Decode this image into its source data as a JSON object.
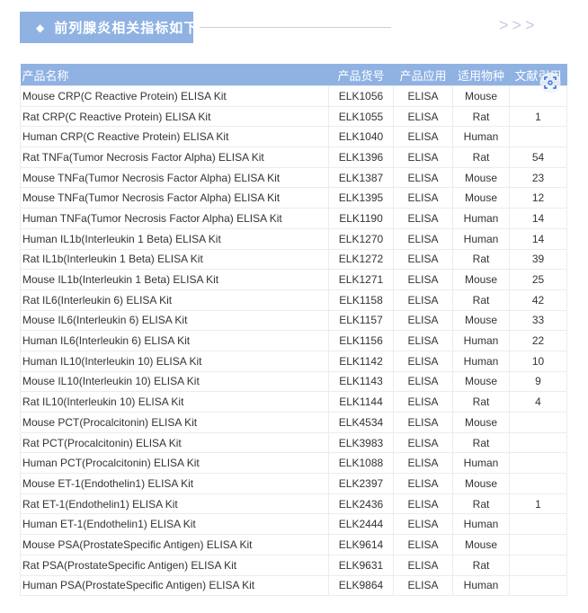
{
  "banner": {
    "icon": "diamond-icon",
    "title": "前列腺炎相关指标如下："
  },
  "decor": {
    "arrows": ">>>"
  },
  "table": {
    "headers": [
      "产品名称",
      "产品货号",
      "产品应用",
      "适用物种",
      "文献引用"
    ],
    "rows": [
      [
        "Mouse CRP(C Reactive Protein) ELISA Kit",
        "ELK1056",
        "ELISA",
        "Mouse",
        ""
      ],
      [
        "Rat CRP(C Reactive Protein) ELISA Kit",
        "ELK1055",
        "ELISA",
        "Rat",
        "1"
      ],
      [
        "Human CRP(C Reactive Protein) ELISA Kit",
        "ELK1040",
        "ELISA",
        "Human",
        ""
      ],
      [
        "Rat TNFa(Tumor Necrosis Factor Alpha) ELISA Kit",
        "ELK1396",
        "ELISA",
        "Rat",
        "54"
      ],
      [
        "Mouse TNFa(Tumor Necrosis Factor Alpha) ELISA Kit",
        "ELK1387",
        "ELISA",
        "Mouse",
        "23"
      ],
      [
        "Mouse TNFa(Tumor Necrosis Factor Alpha) ELISA Kit",
        "ELK1395",
        "ELISA",
        "Mouse",
        "12"
      ],
      [
        "Human TNFa(Tumor Necrosis Factor Alpha) ELISA Kit",
        "ELK1190",
        "ELISA",
        "Human",
        "14"
      ],
      [
        "Human IL1b(Interleukin 1 Beta) ELISA Kit",
        "ELK1270",
        "ELISA",
        "Human",
        "14"
      ],
      [
        "Rat IL1b(Interleukin 1 Beta) ELISA Kit",
        "ELK1272",
        "ELISA",
        "Rat",
        "39"
      ],
      [
        "Mouse IL1b(Interleukin 1 Beta) ELISA Kit",
        "ELK1271",
        "ELISA",
        "Mouse",
        "25"
      ],
      [
        "Rat IL6(Interleukin 6) ELISA Kit",
        "ELK1158",
        "ELISA",
        "Rat",
        "42"
      ],
      [
        "Mouse IL6(Interleukin 6) ELISA Kit",
        "ELK1157",
        "ELISA",
        "Mouse",
        "33"
      ],
      [
        "Human IL6(Interleukin 6) ELISA Kit",
        "ELK1156",
        "ELISA",
        "Human",
        "22"
      ],
      [
        "Human IL10(Interleukin 10) ELISA Kit",
        "ELK1142",
        "ELISA",
        "Human",
        "10"
      ],
      [
        "Mouse IL10(Interleukin 10) ELISA Kit",
        "ELK1143",
        "ELISA",
        "Mouse",
        "9"
      ],
      [
        "Rat IL10(Interleukin 10) ELISA Kit",
        "ELK1144",
        "ELISA",
        "Rat",
        "4"
      ],
      [
        "Mouse PCT(Procalcitonin) ELISA Kit",
        "ELK4534",
        "ELISA",
        "Mouse",
        ""
      ],
      [
        "Rat PCT(Procalcitonin) ELISA Kit",
        "ELK3983",
        "ELISA",
        "Rat",
        ""
      ],
      [
        "Human PCT(Procalcitonin) ELISA Kit",
        "ELK1088",
        "ELISA",
        "Human",
        ""
      ],
      [
        "Mouse ET-1(Endothelin1) ELISA Kit",
        "ELK2397",
        "ELISA",
        "Mouse",
        ""
      ],
      [
        "Rat ET-1(Endothelin1) ELISA Kit",
        "ELK2436",
        "ELISA",
        "Rat",
        "1"
      ],
      [
        "Human ET-1(Endothelin1) ELISA Kit",
        "ELK2444",
        "ELISA",
        "Human",
        ""
      ],
      [
        "Mouse PSA(ProstateSpecific Antigen) ELISA Kit",
        "ELK9614",
        "ELISA",
        "Mouse",
        ""
      ],
      [
        "Rat PSA(ProstateSpecific Antigen) ELISA Kit",
        "ELK9631",
        "ELISA",
        "Rat",
        ""
      ],
      [
        "Human PSA(ProstateSpecific Antigen) ELISA Kit",
        "ELK9864",
        "ELISA",
        "Human",
        ""
      ]
    ]
  },
  "overlay": {
    "icon": "image-scan-icon"
  }
}
